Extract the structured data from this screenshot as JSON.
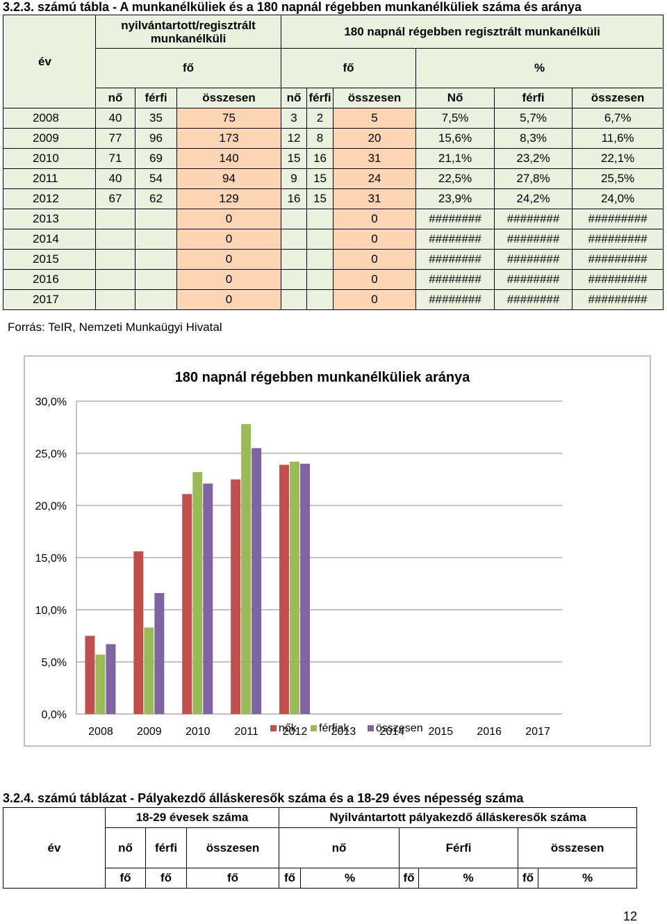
{
  "table1": {
    "heading": "3.2.3. számú tábla - A munkanélküliek és a 180 napnál régebben munkanélküliek száma és aránya",
    "header": {
      "ev": "év",
      "registered_line1": "nyilvántartott/regisztrált",
      "registered_line2": "munkanélküli",
      "over180": "180 napnál régebben regisztrált munkanélküli",
      "fo1": "fő",
      "fo2": "fő",
      "pct": "%",
      "sub": [
        "nő",
        "férfi",
        "összesen",
        "nő",
        "férfi",
        "összesen",
        "Nő",
        "férfi",
        "összesen"
      ]
    },
    "rows": [
      [
        "2008",
        "40",
        "35",
        "75",
        "3",
        "2",
        "5",
        "7,5%",
        "5,7%",
        "6,7%"
      ],
      [
        "2009",
        "77",
        "96",
        "173",
        "12",
        "8",
        "20",
        "15,6%",
        "8,3%",
        "11,6%"
      ],
      [
        "2010",
        "71",
        "69",
        "140",
        "15",
        "16",
        "31",
        "21,1%",
        "23,2%",
        "22,1%"
      ],
      [
        "2011",
        "40",
        "54",
        "94",
        "9",
        "15",
        "24",
        "22,5%",
        "27,8%",
        "25,5%"
      ],
      [
        "2012",
        "67",
        "62",
        "129",
        "16",
        "15",
        "31",
        "23,9%",
        "24,2%",
        "24,0%"
      ],
      [
        "2013",
        "",
        "",
        "0",
        "",
        "",
        "0",
        "########",
        "########",
        "#########"
      ],
      [
        "2014",
        "",
        "",
        "0",
        "",
        "",
        "0",
        "########",
        "########",
        "#########"
      ],
      [
        "2015",
        "",
        "",
        "0",
        "",
        "",
        "0",
        "########",
        "########",
        "#########"
      ],
      [
        "2016",
        "",
        "",
        "0",
        "",
        "",
        "0",
        "########",
        "########",
        "#########"
      ],
      [
        "2017",
        "",
        "",
        "0",
        "",
        "",
        "0",
        "########",
        "########",
        "#########"
      ]
    ],
    "source": "Forrás: TeIR, Nemzeti Munkaügyi Hivatal"
  },
  "chart_data": {
    "type": "bar",
    "title": "180 napnál régebben munkanélküliek aránya",
    "categories": [
      "2008",
      "2009",
      "2010",
      "2011",
      "2012",
      "2013",
      "2014",
      "2015",
      "2016",
      "2017"
    ],
    "series": [
      {
        "name": "nők",
        "color": "#c0504d",
        "values": [
          7.5,
          15.6,
          21.1,
          22.5,
          23.9,
          null,
          null,
          null,
          null,
          null
        ]
      },
      {
        "name": "férfiak",
        "color": "#9bbb59",
        "values": [
          5.7,
          8.3,
          23.2,
          27.8,
          24.2,
          null,
          null,
          null,
          null,
          null
        ]
      },
      {
        "name": "összesen",
        "color": "#8064a2",
        "values": [
          6.7,
          11.6,
          22.1,
          25.5,
          24.0,
          null,
          null,
          null,
          null,
          null
        ]
      }
    ],
    "yticks": [
      "0,0%",
      "5,0%",
      "10,0%",
      "15,0%",
      "20,0%",
      "25,0%",
      "30,0%"
    ],
    "ylim": [
      0,
      30
    ],
    "grid": true,
    "legend": "bottom"
  },
  "table2": {
    "heading": "3.2.4. számú táblázat - Pályakezdő álláskeresők száma és a 18-29 éves népesség száma",
    "ev": "év",
    "group1": "18-29 évesek száma",
    "group2": "Nyilvántartott pályakezdő álláskeresők száma",
    "sub": [
      "nő",
      "férfi",
      "összesen",
      "nő",
      "Férfi",
      "összesen"
    ],
    "units": [
      "fő",
      "fő",
      "fő",
      "fő",
      "%",
      "fő",
      "%",
      "fő",
      "%"
    ]
  },
  "page_number": "12"
}
